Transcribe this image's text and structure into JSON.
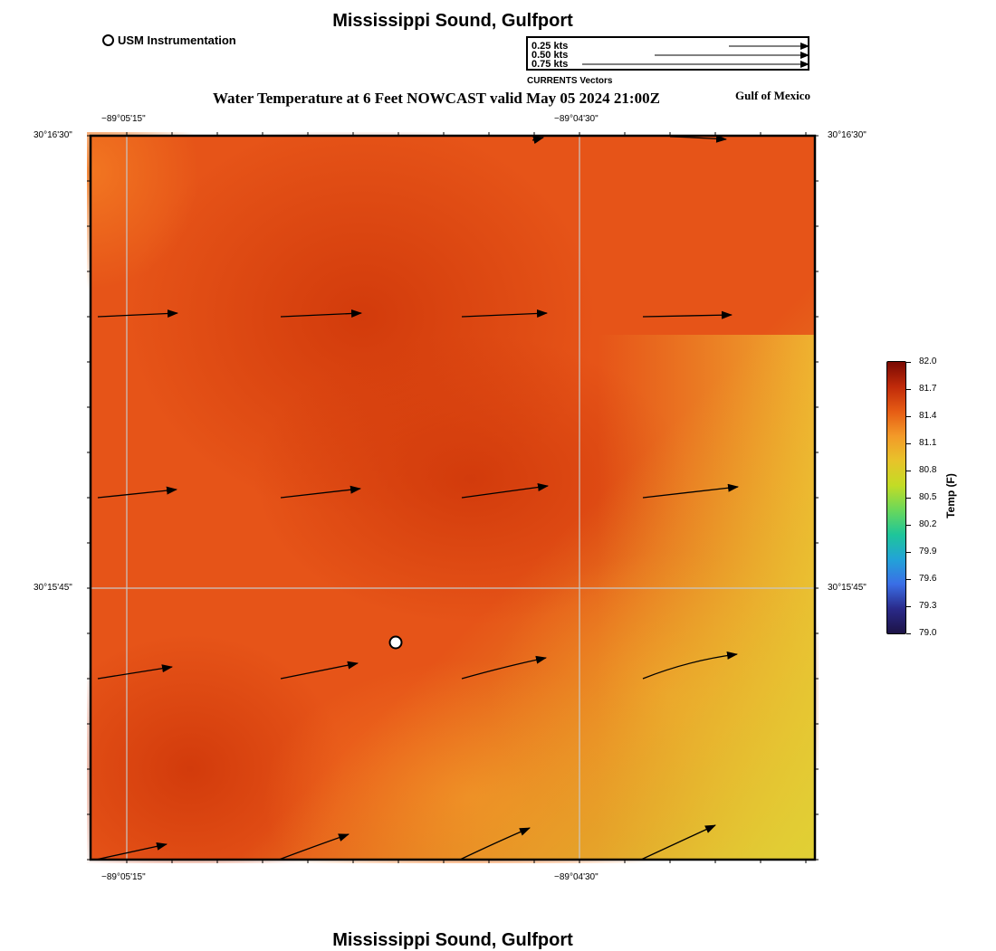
{
  "header": {
    "title": "Mississippi Sound, Gulfport",
    "footer_title": "Mississippi Sound, Gulfport",
    "subtitle": "Water Temperature at 6 Feet NOWCAST valid May 05 2024 21:00Z",
    "region_label": "Gulf of Mexico"
  },
  "station_legend": {
    "label": "USM Instrumentation"
  },
  "vector_legend": {
    "title": "CURRENTS Vectors",
    "entries": [
      "0.25 kts",
      "0.50 kts",
      "0.75 kts"
    ]
  },
  "axes": {
    "top_lon": [
      "−89°05'15\"",
      "−89°04'30\""
    ],
    "bottom_lon": [
      "−89°05'15\"",
      "−89°04'30\""
    ],
    "left_lat": [
      "30°16'30\"",
      "30°15'45\""
    ],
    "right_lat": [
      "30°16'30\"",
      "30°15'45\""
    ]
  },
  "colorbar": {
    "label": "Temp (F)",
    "ticks": [
      "82.0",
      "81.7",
      "81.4",
      "81.1",
      "80.8",
      "80.5",
      "80.2",
      "79.9",
      "79.6",
      "79.3",
      "79.0"
    ],
    "colors": [
      "#7a0a03",
      "#c02a0a",
      "#e65c14",
      "#f39a28",
      "#e8c32a",
      "#c3dc25",
      "#6ad85a",
      "#1ec59a",
      "#22a3d8",
      "#3a6ee6",
      "#2a2a8a",
      "#1d1346"
    ]
  },
  "map": {
    "field_colors": {
      "warm_dark": "#d6400c",
      "warm_mid": "#e85418",
      "warm_light": "#f07020",
      "edge_yellow": "#e8c030"
    }
  }
}
